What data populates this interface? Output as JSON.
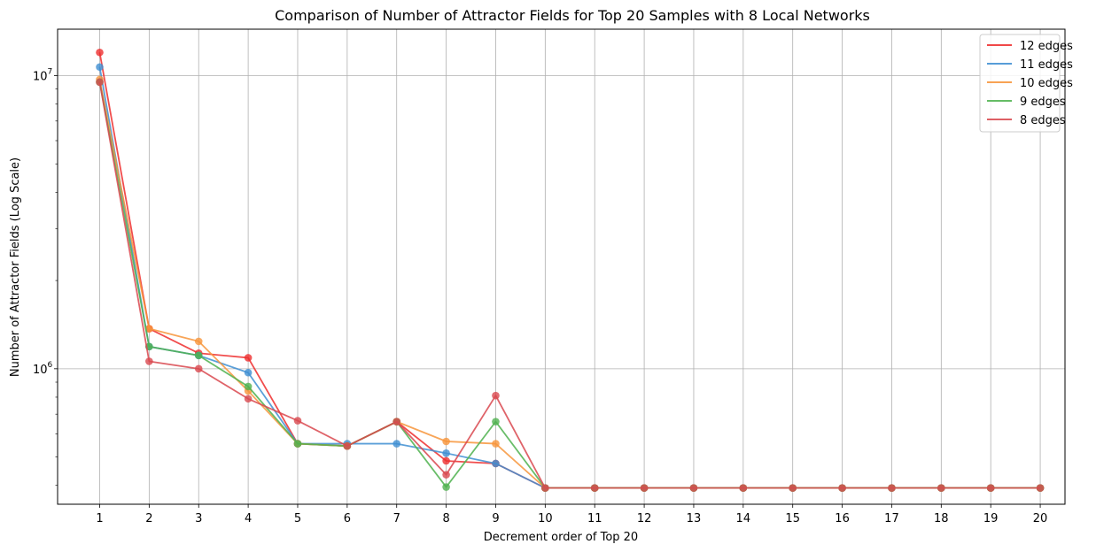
{
  "chart_data": {
    "type": "line",
    "title": "Comparison of Number of Attractor Fields for Top 20 Samples with 8 Local Networks",
    "xlabel": "Decrement order of Top 20",
    "ylabel": "Number of Attractor Fields (Log Scale)",
    "yscale": "log",
    "x": [
      1,
      2,
      3,
      4,
      5,
      6,
      7,
      8,
      9,
      10,
      11,
      12,
      13,
      14,
      15,
      16,
      17,
      18,
      19,
      20
    ],
    "xlim": [
      0.15,
      20.5
    ],
    "ylim": [
      345000,
      14400000
    ],
    "y_ticks": [
      {
        "value": 1000000,
        "base": "10",
        "exp": "6"
      },
      {
        "value": 10000000,
        "base": "10",
        "exp": "7"
      }
    ],
    "grid": true,
    "legend_position": "top-right",
    "series": [
      {
        "name": "12 edges",
        "color": "#ee2e2e",
        "values": [
          12000000,
          1370000,
          1130000,
          1090000,
          555000,
          545000,
          660000,
          485000,
          475000,
          392000,
          392000,
          392000,
          392000,
          392000,
          392000,
          392000,
          392000,
          392000,
          392000,
          392000
        ]
      },
      {
        "name": "11 edges",
        "color": "#3f8fd2",
        "values": [
          10700000,
          1190000,
          1110000,
          970000,
          555000,
          555000,
          555000,
          515000,
          475000,
          392000,
          392000,
          392000,
          392000,
          392000,
          392000,
          392000,
          392000,
          392000,
          392000,
          392000
        ]
      },
      {
        "name": "10 edges",
        "color": "#f7953b",
        "values": [
          9700000,
          1370000,
          1240000,
          840000,
          555000,
          545000,
          660000,
          565000,
          555000,
          392000,
          392000,
          392000,
          392000,
          392000,
          392000,
          392000,
          392000,
          392000,
          392000,
          392000
        ]
      },
      {
        "name": "9 edges",
        "color": "#4fb24f",
        "values": [
          9500000,
          1190000,
          1110000,
          870000,
          555000,
          545000,
          660000,
          395000,
          660000,
          392000,
          392000,
          392000,
          392000,
          392000,
          392000,
          392000,
          392000,
          392000,
          392000,
          392000
        ]
      },
      {
        "name": "8 edges",
        "color": "#d9484f",
        "values": [
          9500000,
          1060000,
          1000000,
          790000,
          665000,
          545000,
          660000,
          435000,
          810000,
          392000,
          392000,
          392000,
          392000,
          392000,
          392000,
          392000,
          392000,
          392000,
          392000,
          392000
        ]
      }
    ]
  }
}
